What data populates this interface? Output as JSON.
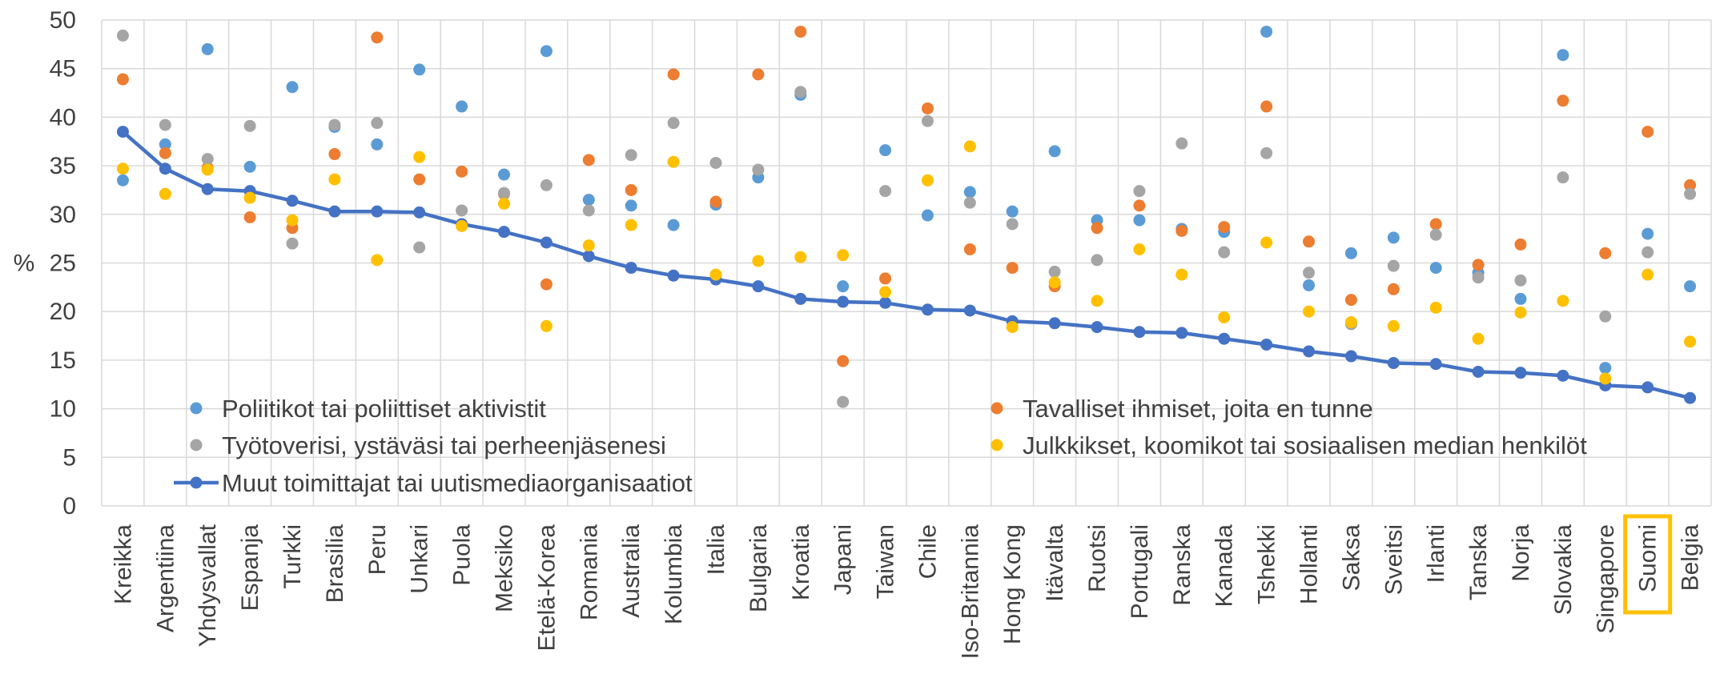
{
  "chart_data": {
    "type": "scatter",
    "ylabel": "%",
    "ylim": [
      0,
      50
    ],
    "y_ticks": [
      "0",
      "5",
      "10",
      "15",
      "20",
      "25",
      "30",
      "35",
      "40",
      "45",
      "50"
    ],
    "grid": true,
    "legend_position": "bottom-inside",
    "highlighted_category": "Suomi",
    "highlight_color": "#FFC000",
    "categories": [
      "Kreikka",
      "Argentiina",
      "Yhdysvallat",
      "Espanja",
      "Turkki",
      "Brasilia",
      "Peru",
      "Unkari",
      "Puola",
      "Meksiko",
      "Etelä-Korea",
      "Romania",
      "Australia",
      "Kolumbia",
      "Italia",
      "Bulgaria",
      "Kroatia",
      "Japani",
      "Taiwan",
      "Chile",
      "Iso-Britannia",
      "Hong Kong",
      "Itävalta",
      "Ruotsi",
      "Portugali",
      "Ranska",
      "Kanada",
      "Tshekki",
      "Hollanti",
      "Saksa",
      "Sveitsi",
      "Irlanti",
      "Tanska",
      "Norja",
      "Slovakia",
      "Singapore",
      "Suomi",
      "Belgia"
    ],
    "series": [
      {
        "name": "Poliitikot tai poliittiset aktivistit",
        "kind": "scatter",
        "color": "#5B9BD5",
        "values": [
          33.5,
          37.2,
          47.0,
          34.9,
          43.1,
          39.0,
          37.2,
          44.9,
          41.1,
          34.1,
          46.8,
          31.5,
          30.9,
          28.9,
          31.0,
          33.8,
          42.3,
          22.6,
          36.6,
          29.9,
          32.3,
          30.3,
          36.5,
          29.4,
          29.4,
          28.5,
          28.2,
          48.8,
          22.7,
          26.0,
          27.6,
          24.5,
          24.0,
          21.3,
          46.4,
          14.2,
          28.0,
          22.6
        ]
      },
      {
        "name": "Tavalliset ihmiset, joita en tunne",
        "kind": "scatter",
        "color": "#ED7D31",
        "values": [
          43.9,
          36.3,
          34.8,
          29.7,
          28.6,
          36.2,
          48.2,
          33.6,
          34.4,
          32.1,
          22.8,
          35.6,
          32.5,
          44.4,
          31.3,
          44.4,
          48.8,
          14.9,
          23.4,
          40.9,
          26.4,
          24.5,
          22.6,
          28.6,
          30.9,
          28.3,
          28.7,
          41.1,
          27.2,
          21.2,
          22.3,
          29.0,
          24.8,
          26.9,
          41.7,
          26.0,
          38.5,
          33.0
        ]
      },
      {
        "name": "Työtoverisi, ystäväsi tai perheenjäsenesi",
        "kind": "scatter",
        "color": "#A5A5A5",
        "values": [
          48.4,
          39.2,
          35.7,
          39.1,
          27.0,
          39.2,
          39.4,
          26.6,
          30.4,
          32.2,
          33.0,
          30.4,
          36.1,
          39.4,
          35.3,
          34.6,
          42.6,
          10.7,
          32.4,
          39.6,
          31.2,
          29.0,
          24.1,
          25.3,
          32.4,
          37.3,
          26.1,
          36.3,
          24.0,
          18.7,
          24.7,
          27.9,
          23.5,
          23.2,
          33.8,
          19.5,
          26.1,
          32.1
        ]
      },
      {
        "name": "Julkkikset, koomikot tai sosiaalisen median henkilöt",
        "kind": "scatter",
        "color": "#FFC000",
        "values": [
          34.7,
          32.1,
          34.6,
          31.7,
          29.4,
          33.6,
          25.3,
          35.9,
          28.8,
          31.1,
          18.5,
          26.8,
          28.9,
          35.4,
          23.8,
          25.2,
          25.6,
          25.8,
          22.0,
          33.5,
          37.0,
          18.4,
          23.0,
          21.1,
          26.4,
          23.8,
          19.4,
          27.1,
          20.0,
          18.9,
          18.5,
          20.4,
          17.2,
          19.9,
          21.1,
          13.1,
          23.8,
          16.9
        ]
      },
      {
        "name": "Muut toimittajat tai uutismediaorganisaatiot",
        "kind": "line",
        "color": "#4472C4",
        "values": [
          38.5,
          34.7,
          32.6,
          32.4,
          31.4,
          30.3,
          30.3,
          30.2,
          29.0,
          28.2,
          27.1,
          25.7,
          24.5,
          23.7,
          23.3,
          22.6,
          21.3,
          21.0,
          20.9,
          20.2,
          20.1,
          19.0,
          18.8,
          18.4,
          17.9,
          17.8,
          17.2,
          16.6,
          15.9,
          15.4,
          14.7,
          14.6,
          13.8,
          13.7,
          13.4,
          12.4,
          12.2,
          11.1
        ]
      }
    ],
    "legend": [
      {
        "label": "Poliitikot tai poliittiset aktivistit",
        "series": 0,
        "marker": "dot"
      },
      {
        "label": "Työtoverisi, ystäväsi tai perheenjäsenesi",
        "series": 2,
        "marker": "dot"
      },
      {
        "label": "Muut toimittajat tai uutismediaorganisaatiot",
        "series": 4,
        "marker": "line"
      },
      {
        "label": "Tavalliset ihmiset, joita en tunne",
        "series": 1,
        "marker": "dot"
      },
      {
        "label": "Julkkikset, koomikot tai sosiaalisen median henkilöt",
        "series": 3,
        "marker": "dot"
      }
    ]
  }
}
